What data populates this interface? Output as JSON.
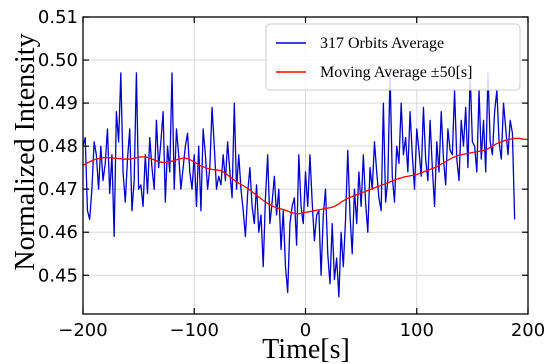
{
  "chart_data": {
    "type": "line",
    "title": "",
    "xlabel": "Time[s]",
    "ylabel": "Normalized Intensity",
    "xlim": [
      -200,
      200
    ],
    "ylim": [
      0.441,
      0.51
    ],
    "xticks": [
      -200,
      -100,
      0,
      100,
      200
    ],
    "xtick_labels": [
      "−200",
      "−100",
      "0",
      "100",
      "200"
    ],
    "yticks": [
      0.45,
      0.46,
      0.47,
      0.48,
      0.49,
      0.5,
      0.51
    ],
    "ytick_labels": [
      "0.45",
      "0.46",
      "0.47",
      "0.48",
      "0.49",
      "0.50",
      "0.51"
    ],
    "grid": true,
    "legend_position": "top-right",
    "x_step": 2,
    "series": [
      {
        "name": "317 Orbits Average",
        "color": "#0000cc",
        "values": [
          0.48,
          0.482,
          0.465,
          0.463,
          0.47,
          0.481,
          0.478,
          0.47,
          0.48,
          0.472,
          0.476,
          0.484,
          0.469,
          0.478,
          0.459,
          0.488,
          0.481,
          0.497,
          0.474,
          0.467,
          0.477,
          0.484,
          0.465,
          0.472,
          0.497,
          0.47,
          0.471,
          0.466,
          0.478,
          0.469,
          0.482,
          0.475,
          0.47,
          0.486,
          0.475,
          0.481,
          0.488,
          0.467,
          0.48,
          0.474,
          0.497,
          0.47,
          0.484,
          0.478,
          0.47,
          0.475,
          0.48,
          0.483,
          0.474,
          0.47,
          0.478,
          0.466,
          0.48,
          0.465,
          0.484,
          0.478,
          0.47,
          0.475,
          0.489,
          0.48,
          0.47,
          0.473,
          0.471,
          0.478,
          0.472,
          0.481,
          0.474,
          0.468,
          0.49,
          0.47,
          0.478,
          0.47,
          0.465,
          0.459,
          0.469,
          0.475,
          0.466,
          0.462,
          0.471,
          0.46,
          0.464,
          0.452,
          0.468,
          0.478,
          0.462,
          0.467,
          0.473,
          0.464,
          0.47,
          0.456,
          0.465,
          0.452,
          0.446,
          0.462,
          0.466,
          0.468,
          0.457,
          0.478,
          0.466,
          0.462,
          0.474,
          0.466,
          0.478,
          0.467,
          0.458,
          0.464,
          0.465,
          0.45,
          0.464,
          0.47,
          0.455,
          0.448,
          0.462,
          0.449,
          0.454,
          0.445,
          0.46,
          0.452,
          0.463,
          0.479,
          0.464,
          0.455,
          0.47,
          0.462,
          0.474,
          0.466,
          0.478,
          0.467,
          0.46,
          0.475,
          0.47,
          0.481,
          0.474,
          0.468,
          0.465,
          0.49,
          0.467,
          0.472,
          0.497,
          0.473,
          0.467,
          0.48,
          0.476,
          0.49,
          0.478,
          0.482,
          0.474,
          0.488,
          0.478,
          0.47,
          0.484,
          0.479,
          0.473,
          0.489,
          0.477,
          0.472,
          0.486,
          0.475,
          0.466,
          0.481,
          0.474,
          0.488,
          0.477,
          0.471,
          0.484,
          0.479,
          0.478,
          0.493,
          0.477,
          0.472,
          0.486,
          0.48,
          0.489,
          0.475,
          0.497,
          0.481,
          0.48,
          0.474,
          0.493,
          0.477,
          0.486,
          0.474,
          0.497,
          0.481,
          0.478,
          0.488,
          0.493,
          0.481,
          0.477,
          0.49,
          0.484,
          0.478,
          0.486,
          0.483,
          0.463
        ]
      },
      {
        "name": "Moving Average ±50[s]",
        "color": "#ff0000",
        "values": [
          0.4755,
          0.4758,
          0.4761,
          0.4764,
          0.4766,
          0.4768,
          0.477,
          0.4771,
          0.4772,
          0.4773,
          0.4773,
          0.4773,
          0.4773,
          0.4773,
          0.4772,
          0.4772,
          0.4771,
          0.4771,
          0.477,
          0.477,
          0.477,
          0.477,
          0.4771,
          0.4772,
          0.4773,
          0.4774,
          0.4775,
          0.4775,
          0.4775,
          0.4774,
          0.4772,
          0.477,
          0.4768,
          0.4766,
          0.4764,
          0.4763,
          0.4762,
          0.4762,
          0.4763,
          0.4764,
          0.4765,
          0.4767,
          0.4768,
          0.477,
          0.4771,
          0.4772,
          0.4772,
          0.4771,
          0.4769,
          0.4766,
          0.4763,
          0.476,
          0.4757,
          0.4754,
          0.4752,
          0.475,
          0.4748,
          0.4747,
          0.4746,
          0.4745,
          0.4745,
          0.4744,
          0.4743,
          0.474,
          0.4737,
          0.4733,
          0.4729,
          0.4725,
          0.4721,
          0.4717,
          0.4714,
          0.4711,
          0.4708,
          0.4705,
          0.4702,
          0.4698,
          0.4694,
          0.469,
          0.4686,
          0.4682,
          0.4678,
          0.4674,
          0.467,
          0.4667,
          0.4664,
          0.4661,
          0.4659,
          0.4657,
          0.4655,
          0.4654,
          0.4653,
          0.4651,
          0.4649,
          0.4647,
          0.4645,
          0.4644,
          0.4643,
          0.4643,
          0.4644,
          0.4645,
          0.4646,
          0.4647,
          0.4648,
          0.4649,
          0.465,
          0.4651,
          0.4652,
          0.4653,
          0.4654,
          0.4655,
          0.4656,
          0.4657,
          0.4658,
          0.466,
          0.4663,
          0.4666,
          0.467,
          0.4673,
          0.4676,
          0.4679,
          0.4681,
          0.4683,
          0.4685,
          0.4687,
          0.4689,
          0.4691,
          0.4693,
          0.4695,
          0.4697,
          0.4699,
          0.4701,
          0.4703,
          0.4705,
          0.4707,
          0.4709,
          0.4711,
          0.4713,
          0.4715,
          0.4717,
          0.4719,
          0.4721,
          0.4723,
          0.4725,
          0.4726,
          0.4728,
          0.4729,
          0.473,
          0.4731,
          0.4732,
          0.4733,
          0.4734,
          0.4736,
          0.4738,
          0.474,
          0.4742,
          0.4744,
          0.4746,
          0.4748,
          0.475,
          0.4752,
          0.4755,
          0.4758,
          0.4761,
          0.4764,
          0.4767,
          0.477,
          0.4773,
          0.4775,
          0.4777,
          0.4779,
          0.478,
          0.4781,
          0.4782,
          0.4783,
          0.4784,
          0.4785,
          0.4786,
          0.4787,
          0.4788,
          0.4789,
          0.479,
          0.4792,
          0.4794,
          0.4797,
          0.48,
          0.4803,
          0.4806,
          0.4808,
          0.481,
          0.4812,
          0.4814,
          0.4815,
          0.4816,
          0.4817,
          0.4818,
          0.4818,
          0.4818,
          0.4817,
          0.4816,
          0.4816,
          0.4815
        ]
      }
    ]
  }
}
